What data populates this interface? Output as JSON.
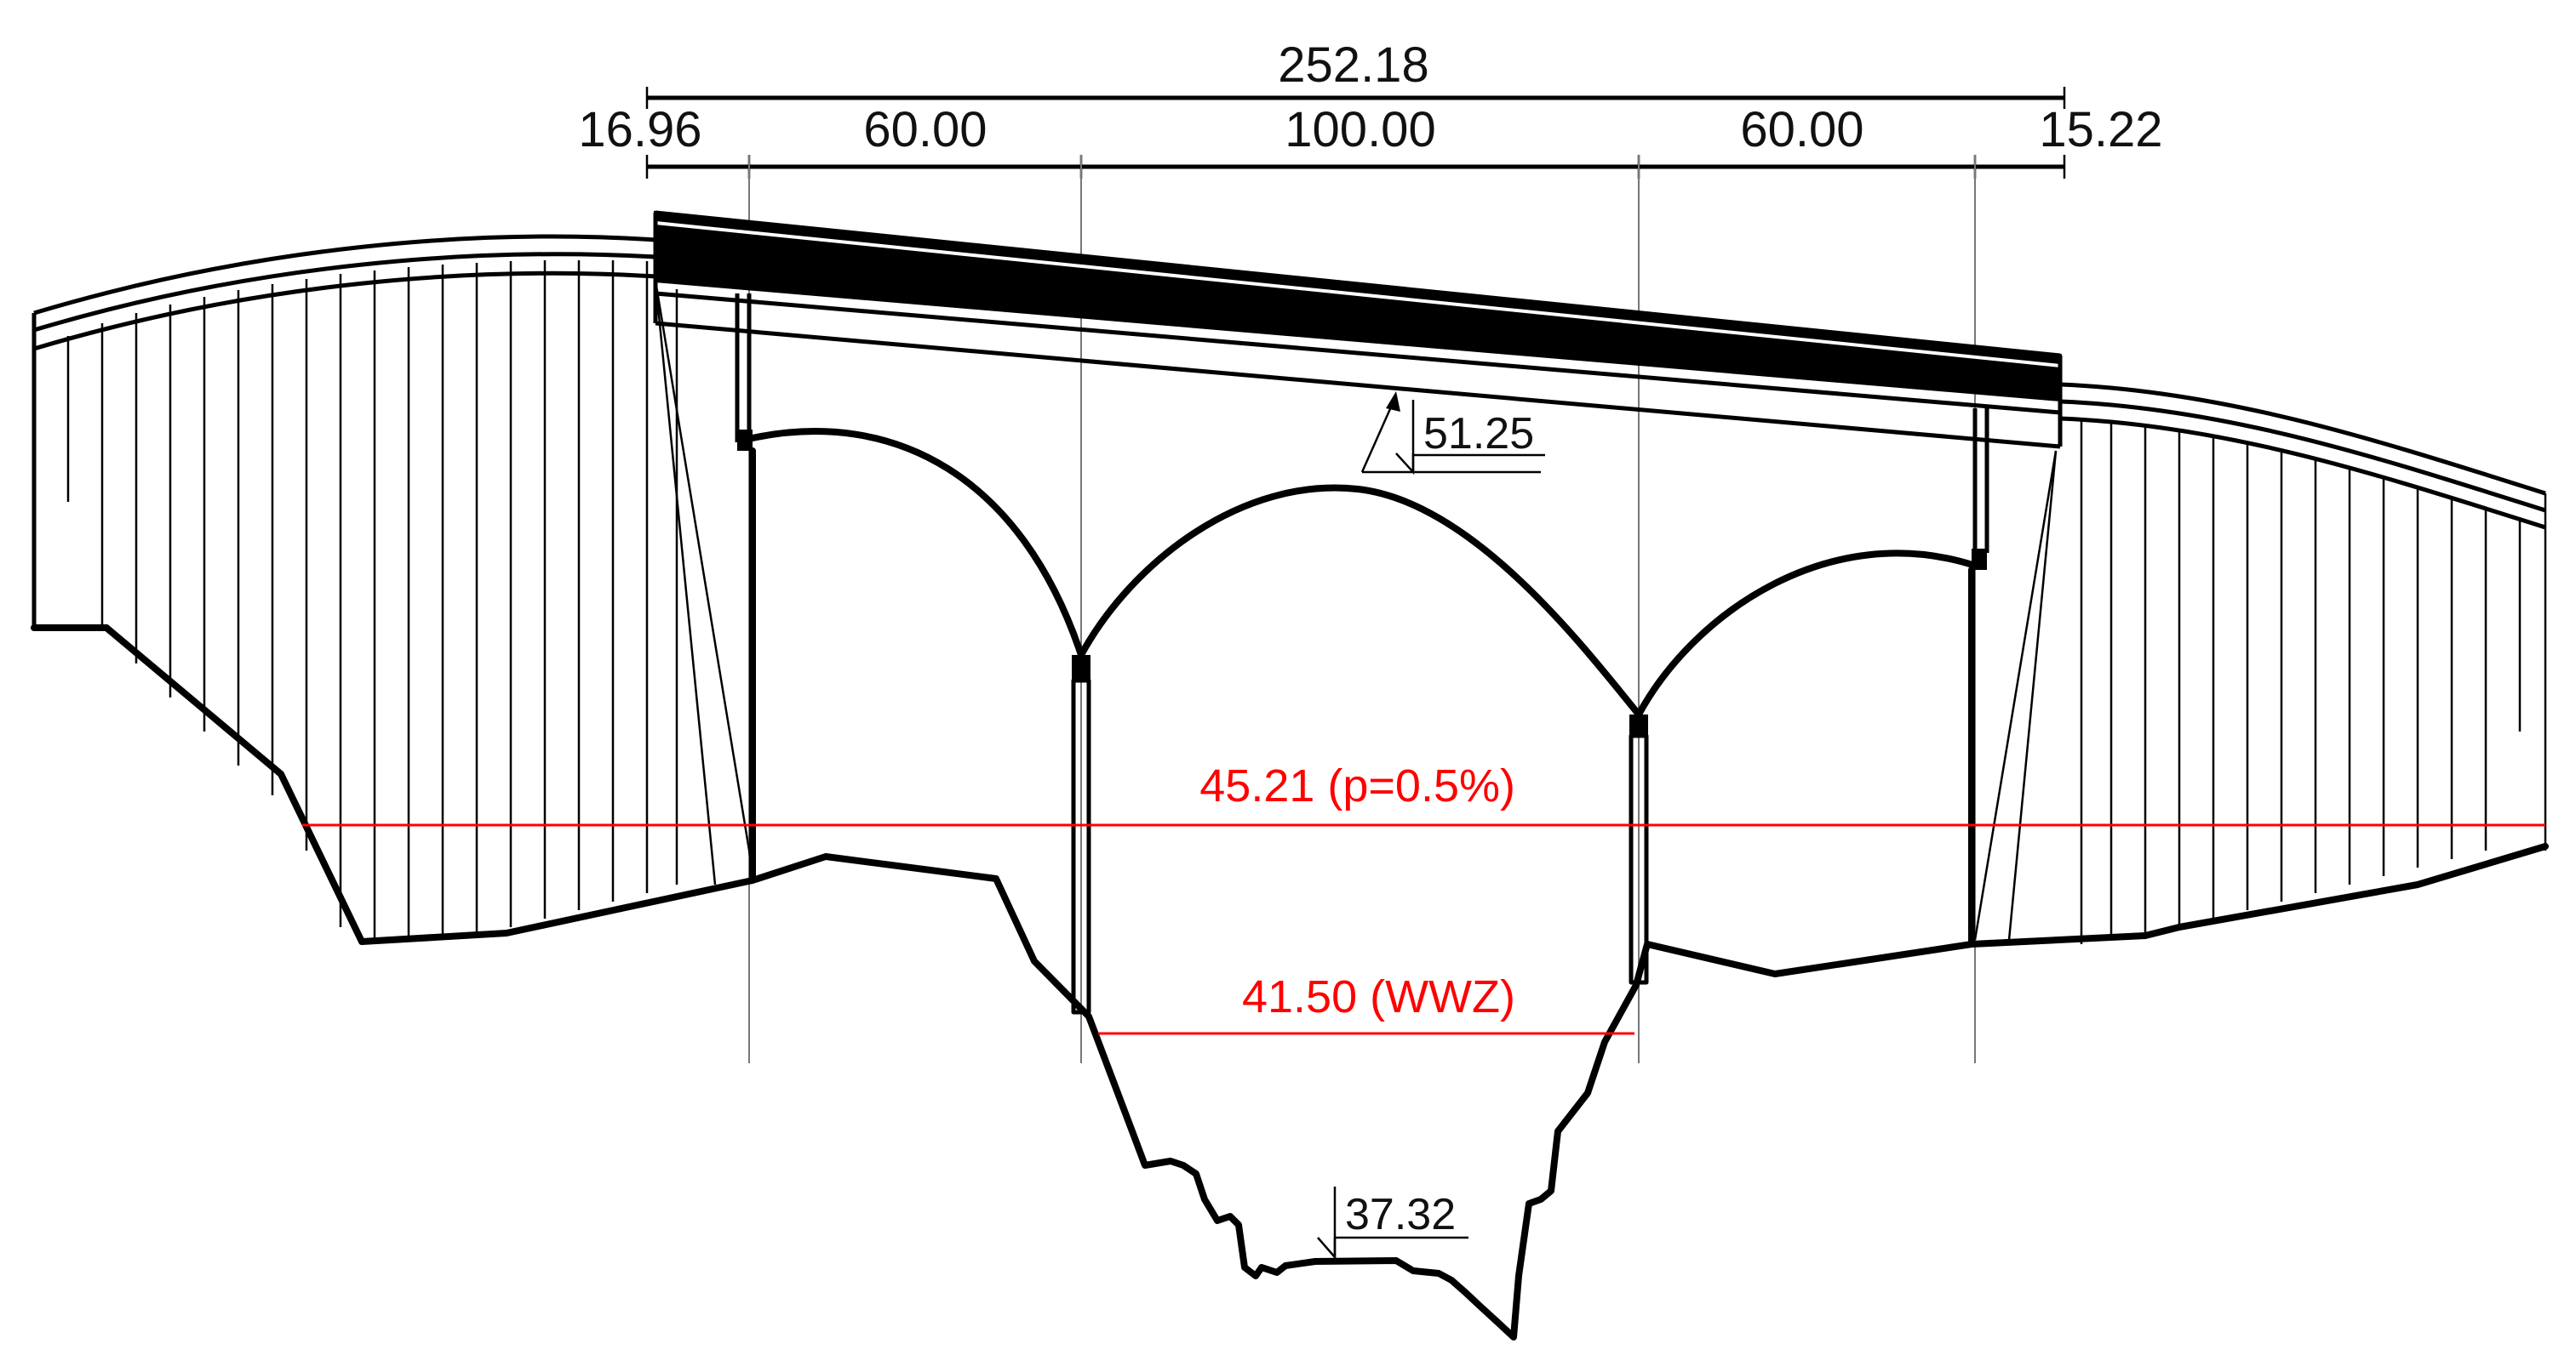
{
  "drawing": {
    "overall_dimension": "252.18",
    "span_dimensions": [
      "16.96",
      "60.00",
      "100.00",
      "60.00",
      "15.22"
    ],
    "deck_level": "51.25",
    "riverbed_level": "37.32",
    "flood_level": "45.21 (p=0.5%)",
    "mean_water_level": "41.50 (WWZ)"
  },
  "colors": {
    "structure": "#000000",
    "water_levels": "#ff0000",
    "gridlines": "#777777"
  }
}
